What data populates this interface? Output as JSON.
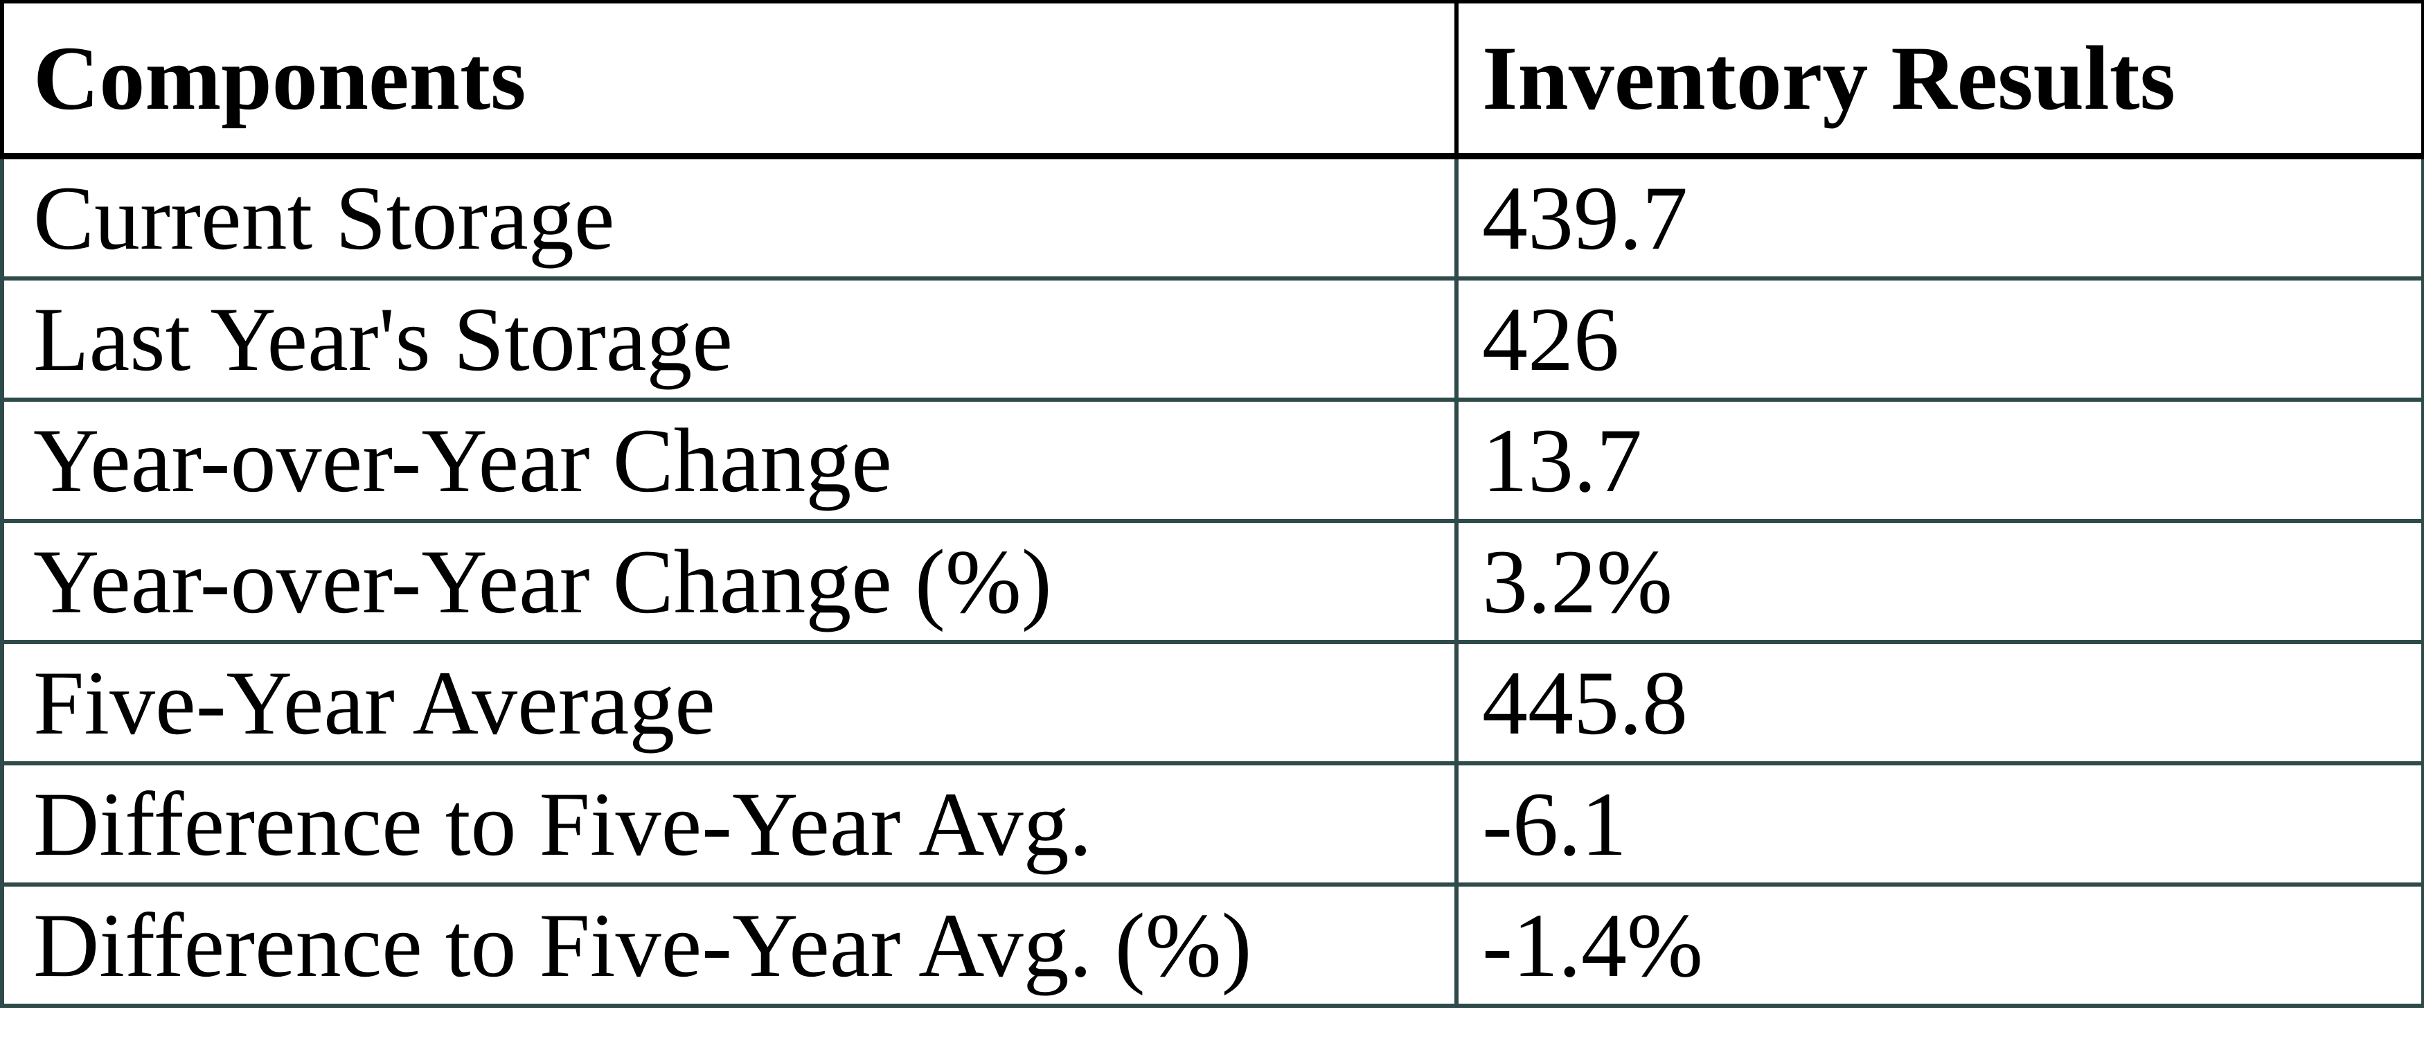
{
  "chart_data": {
    "type": "table",
    "title": "",
    "columns": [
      "Components",
      "Inventory Results"
    ],
    "rows": [
      [
        "Current Storage",
        "439.7"
      ],
      [
        "Last Year's Storage",
        "426"
      ],
      [
        "Year-over-Year Change",
        "13.7"
      ],
      [
        "Year-over-Year Change (%)",
        "3.2%"
      ],
      [
        "Five-Year Average",
        "445.8"
      ],
      [
        "Difference to Five-Year Avg.",
        "-6.1"
      ],
      [
        "Difference to Five-Year Avg. (%)",
        "-1.4%"
      ]
    ],
    "layout_hints": {
      "header_bold": true,
      "gridlines": "all",
      "label_column_fraction": 0.6
    }
  },
  "colors": {
    "header_border": "#000000",
    "body_border": "#2E4B4A",
    "text": "#000000",
    "background": "#FFFFFF"
  }
}
